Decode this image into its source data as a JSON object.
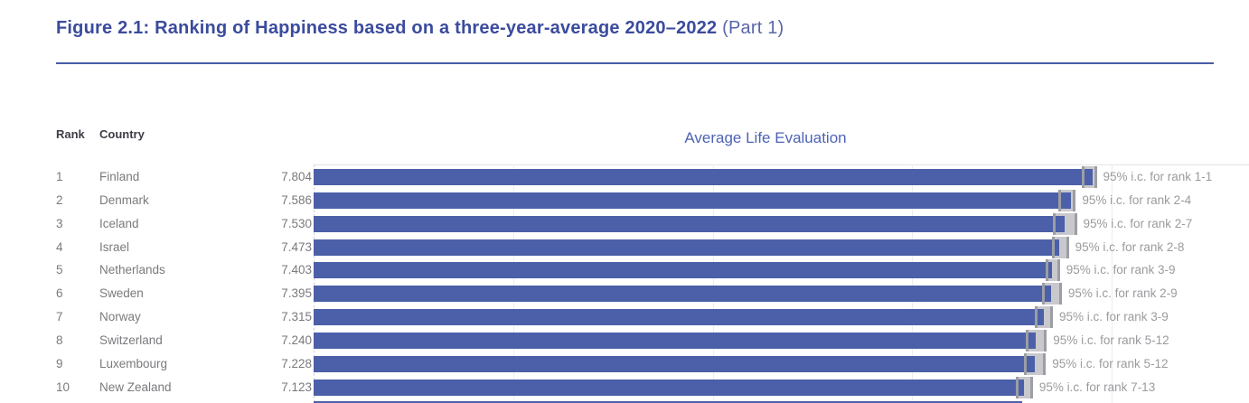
{
  "figure": {
    "title": "Figure 2.1: Ranking of Happiness based on a three-year-average 2020–2022",
    "title_suffix": " (Part 1)"
  },
  "table_headers": {
    "rank": "Rank",
    "country": "Country"
  },
  "colors": {
    "title_blue": "#3b4b9d",
    "suffix_blue": "#5965ab",
    "rule_blue": "#4a5ca7",
    "axis_blue": "#4c63b5",
    "bar_blue": "#4b60a8",
    "ci_band": "#c9c9cd",
    "ci_tick": "#9b9ea3"
  },
  "chart_data": {
    "type": "bar",
    "orientation": "horizontal",
    "title": "Average Life Evaluation",
    "xlabel": "",
    "ylabel": "",
    "x_axis": {
      "min": 0,
      "max": 9.4,
      "gridline_values": [
        2,
        4,
        6,
        8
      ],
      "tick_labels_visible": false,
      "zero_line_style": "dashed"
    },
    "legend": "none",
    "rows": [
      {
        "rank": "1",
        "country": "Finland",
        "value": 7.804,
        "value_label": "7.804",
        "ci_lower": 7.7,
        "ci_upper": 7.84,
        "ci_label": "95% i.c. for rank 1-1"
      },
      {
        "rank": "2",
        "country": "Denmark",
        "value": 7.586,
        "value_label": "7.586",
        "ci_lower": 7.46,
        "ci_upper": 7.63,
        "ci_label": "95% i.c. for rank 2-4"
      },
      {
        "rank": "3",
        "country": "Iceland",
        "value": 7.53,
        "value_label": "7.530",
        "ci_lower": 7.41,
        "ci_upper": 7.64,
        "ci_label": "95% i.c. for rank 2-7"
      },
      {
        "rank": "4",
        "country": "Israel",
        "value": 7.473,
        "value_label": "7.473",
        "ci_lower": 7.4,
        "ci_upper": 7.56,
        "ci_label": "95% i.c. for rank 2-8"
      },
      {
        "rank": "5",
        "country": "Netherlands",
        "value": 7.403,
        "value_label": "7.403",
        "ci_lower": 7.34,
        "ci_upper": 7.47,
        "ci_label": "95% i.c. for rank 3-9"
      },
      {
        "rank": "6",
        "country": "Sweden",
        "value": 7.395,
        "value_label": "7.395",
        "ci_lower": 7.3,
        "ci_upper": 7.49,
        "ci_label": "95% i.c. for rank 2-9"
      },
      {
        "rank": "7",
        "country": "Norway",
        "value": 7.315,
        "value_label": "7.315",
        "ci_lower": 7.23,
        "ci_upper": 7.4,
        "ci_label": "95% i.c. for rank 3-9"
      },
      {
        "rank": "8",
        "country": "Switzerland",
        "value": 7.24,
        "value_label": "7.240",
        "ci_lower": 7.14,
        "ci_upper": 7.34,
        "ci_label": "95% i.c. for rank 5-12"
      },
      {
        "rank": "9",
        "country": "Luxembourg",
        "value": 7.228,
        "value_label": "7.228",
        "ci_lower": 7.12,
        "ci_upper": 7.33,
        "ci_label": "95% i.c. for rank 5-12"
      },
      {
        "rank": "10",
        "country": "New Zealand",
        "value": 7.123,
        "value_label": "7.123",
        "ci_lower": 7.04,
        "ci_upper": 7.2,
        "ci_label": "95% i.c. for rank 7-13"
      }
    ],
    "partial_next_row_value": 7.1
  }
}
